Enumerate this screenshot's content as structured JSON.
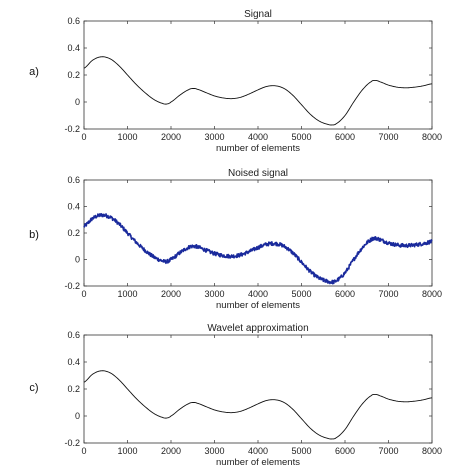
{
  "chart_data": [
    {
      "type": "line",
      "panel_label": "a)",
      "title": "Signal",
      "xlabel": "number of elements",
      "ylabel": "",
      "xlim": [
        0,
        8000
      ],
      "ylim": [
        -0.2,
        0.6
      ],
      "xticks": [
        0,
        1000,
        2000,
        3000,
        4000,
        5000,
        6000,
        7000,
        8000
      ],
      "yticks": [
        -0.2,
        0,
        0.2,
        0.4,
        0.6
      ],
      "xtick_labels": [
        "0",
        "1000",
        "2000",
        "3000",
        "4000",
        "5000",
        "6000",
        "7000",
        "8000"
      ],
      "ytick_labels": [
        "-0.2",
        "0",
        "0.2",
        "0.4",
        "0.6"
      ],
      "grid": false,
      "line_color": "#111111",
      "noisy": false,
      "series": [
        {
          "x": [
            0,
            200,
            400,
            600,
            800,
            1000,
            1200,
            1400,
            1600,
            1800,
            1900,
            2000,
            2200,
            2400,
            2500,
            2600,
            2800,
            3000,
            3200,
            3400,
            3600,
            3800,
            4000,
            4200,
            4400,
            4600,
            4800,
            5000,
            5200,
            5400,
            5600,
            5700,
            5800,
            6000,
            6200,
            6400,
            6600,
            6700,
            6800,
            7000,
            7200,
            7400,
            7600,
            7800,
            8000
          ],
          "y": [
            0.25,
            0.31,
            0.335,
            0.32,
            0.27,
            0.2,
            0.13,
            0.07,
            0.02,
            -0.01,
            -0.015,
            0.0,
            0.05,
            0.09,
            0.1,
            0.095,
            0.07,
            0.045,
            0.03,
            0.025,
            0.035,
            0.06,
            0.09,
            0.115,
            0.12,
            0.1,
            0.05,
            -0.02,
            -0.09,
            -0.14,
            -0.165,
            -0.17,
            -0.16,
            -0.1,
            0.0,
            0.09,
            0.15,
            0.16,
            0.15,
            0.125,
            0.11,
            0.105,
            0.11,
            0.12,
            0.135
          ]
        }
      ]
    },
    {
      "type": "line",
      "panel_label": "b)",
      "title": "Noised signal",
      "xlabel": "number of elements",
      "ylabel": "",
      "xlim": [
        0,
        8000
      ],
      "ylim": [
        -0.2,
        0.6
      ],
      "xticks": [
        0,
        1000,
        2000,
        3000,
        4000,
        5000,
        6000,
        7000,
        8000
      ],
      "yticks": [
        -0.2,
        0,
        0.2,
        0.4,
        0.6
      ],
      "xtick_labels": [
        "0",
        "1000",
        "2000",
        "3000",
        "4000",
        "5000",
        "6000",
        "7000",
        "8000"
      ],
      "ytick_labels": [
        "-0.2",
        "0",
        "0.2",
        "0.4",
        "0.6"
      ],
      "grid": false,
      "line_color": "#1a2a9c",
      "noisy": true,
      "series": [
        {
          "x": [
            0,
            200,
            400,
            600,
            800,
            1000,
            1200,
            1400,
            1600,
            1800,
            1900,
            2000,
            2200,
            2400,
            2500,
            2600,
            2800,
            3000,
            3200,
            3400,
            3600,
            3800,
            4000,
            4200,
            4400,
            4600,
            4800,
            5000,
            5200,
            5400,
            5600,
            5700,
            5800,
            6000,
            6200,
            6400,
            6600,
            6700,
            6800,
            7000,
            7200,
            7400,
            7600,
            7800,
            8000
          ],
          "y": [
            0.25,
            0.31,
            0.335,
            0.32,
            0.27,
            0.2,
            0.13,
            0.07,
            0.02,
            -0.01,
            -0.015,
            0.0,
            0.05,
            0.09,
            0.1,
            0.095,
            0.07,
            0.045,
            0.03,
            0.025,
            0.035,
            0.06,
            0.09,
            0.115,
            0.12,
            0.1,
            0.05,
            -0.02,
            -0.09,
            -0.14,
            -0.165,
            -0.17,
            -0.16,
            -0.1,
            0.0,
            0.09,
            0.15,
            0.16,
            0.15,
            0.125,
            0.11,
            0.105,
            0.11,
            0.12,
            0.135
          ]
        }
      ]
    },
    {
      "type": "line",
      "panel_label": "c)",
      "title": "Wavelet approximation",
      "xlabel": "number of elements",
      "ylabel": "",
      "xlim": [
        0,
        8000
      ],
      "ylim": [
        -0.2,
        0.6
      ],
      "xticks": [
        0,
        1000,
        2000,
        3000,
        4000,
        5000,
        6000,
        7000,
        8000
      ],
      "yticks": [
        -0.2,
        0,
        0.2,
        0.4,
        0.6
      ],
      "xtick_labels": [
        "0",
        "1000",
        "2000",
        "3000",
        "4000",
        "5000",
        "6000",
        "7000",
        "8000"
      ],
      "ytick_labels": [
        "-0.2",
        "0",
        "0.2",
        "0.4",
        "0.6"
      ],
      "grid": false,
      "line_color": "#111111",
      "noisy": false,
      "series": [
        {
          "x": [
            0,
            200,
            400,
            600,
            800,
            1000,
            1200,
            1400,
            1600,
            1800,
            1900,
            2000,
            2200,
            2400,
            2500,
            2600,
            2800,
            3000,
            3200,
            3400,
            3600,
            3800,
            4000,
            4200,
            4400,
            4600,
            4800,
            5000,
            5200,
            5400,
            5600,
            5700,
            5800,
            6000,
            6200,
            6400,
            6600,
            6700,
            6800,
            7000,
            7200,
            7400,
            7600,
            7800,
            8000
          ],
          "y": [
            0.25,
            0.31,
            0.335,
            0.32,
            0.27,
            0.2,
            0.13,
            0.07,
            0.02,
            -0.01,
            -0.015,
            0.0,
            0.05,
            0.09,
            0.1,
            0.095,
            0.07,
            0.045,
            0.03,
            0.025,
            0.035,
            0.06,
            0.09,
            0.115,
            0.12,
            0.1,
            0.05,
            -0.02,
            -0.09,
            -0.14,
            -0.165,
            -0.17,
            -0.16,
            -0.1,
            0.0,
            0.09,
            0.15,
            0.16,
            0.15,
            0.125,
            0.11,
            0.105,
            0.11,
            0.12,
            0.135
          ]
        }
      ]
    }
  ]
}
